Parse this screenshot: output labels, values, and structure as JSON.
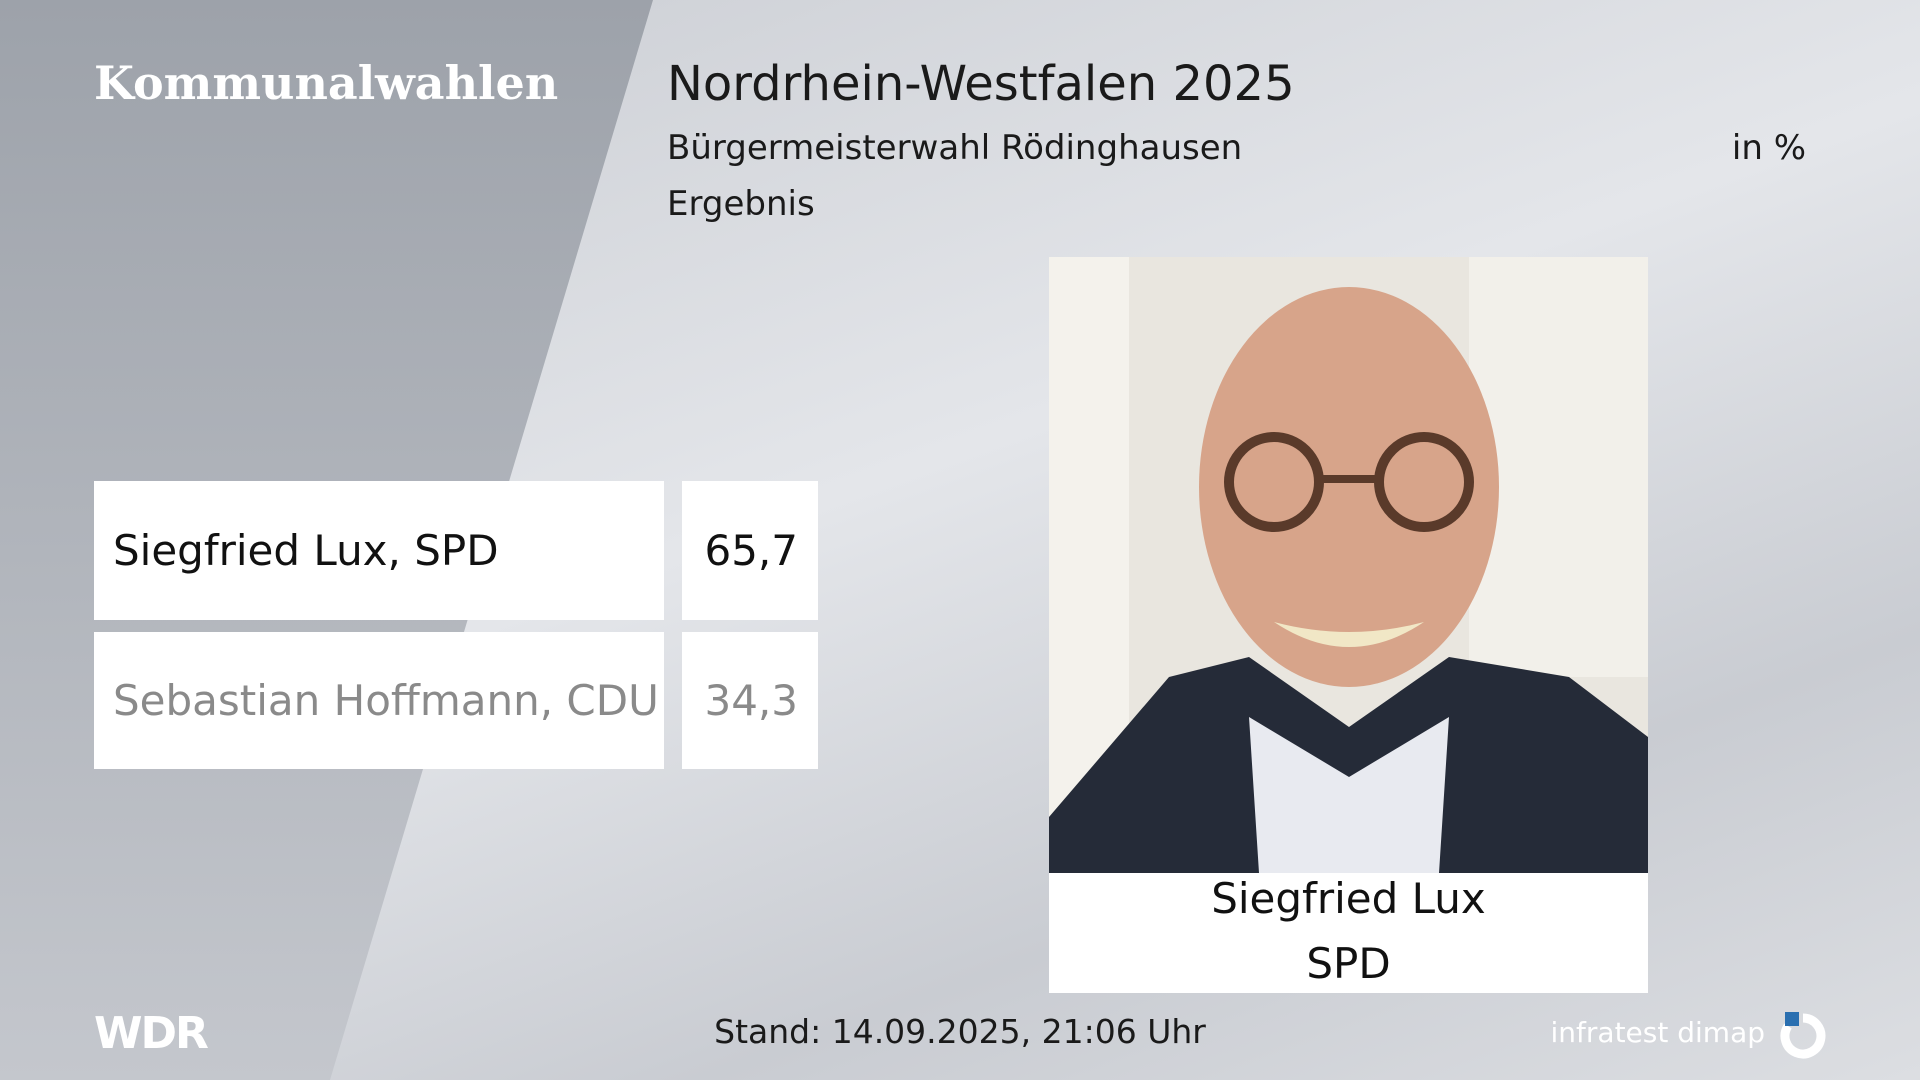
{
  "header": {
    "brand": "Kommunalwahlen",
    "title": "Nordrhein-Westfalen 2025",
    "subtitle": "Bürgermeisterwahl Rödinghausen",
    "unit": "in %",
    "label": "Ergebnis"
  },
  "results": {
    "rows": [
      [
        "Siegfried Lux, SPD",
        "65,7"
      ],
      [
        "Sebastian Hoffmann, CDU",
        "34,3"
      ]
    ]
  },
  "winner": {
    "name": "Siegfried Lux",
    "party": "SPD"
  },
  "footer": {
    "broadcaster": "WDR",
    "timestamp": "Stand: 14.09.2025, 21:06 Uhr",
    "source": "infratest dimap"
  }
}
